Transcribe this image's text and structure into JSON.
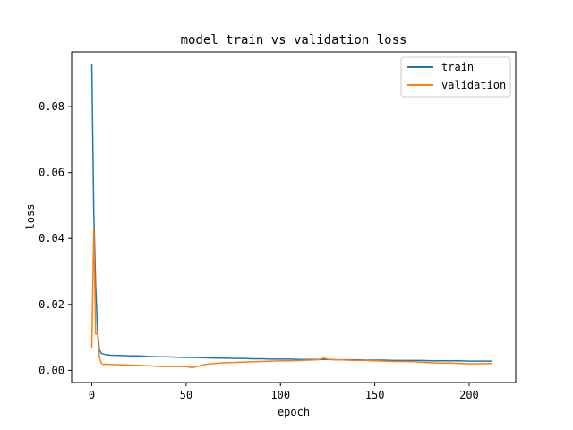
{
  "chart_data": {
    "type": "line",
    "title": "model train vs validation loss",
    "xlabel": "epoch",
    "ylabel": "loss",
    "xlim": [
      -10.7,
      224.7
    ],
    "ylim": [
      -0.0037,
      0.0966
    ],
    "xticks": [
      0,
      50,
      100,
      150,
      200
    ],
    "xtick_labels": [
      "0",
      "50",
      "100",
      "150",
      "200"
    ],
    "yticks": [
      0.0,
      0.02,
      0.04,
      0.06,
      0.08
    ],
    "ytick_labels": [
      "0.00",
      "0.02",
      "0.04",
      "0.06",
      "0.08"
    ],
    "grid": false,
    "legend_position": "top-right",
    "series": [
      {
        "name": "train",
        "color": "#1f77b4",
        "points": [
          [
            0,
            0.093
          ],
          [
            1,
            0.048
          ],
          [
            2,
            0.026
          ],
          [
            3,
            0.012
          ],
          [
            4,
            0.0062
          ],
          [
            5,
            0.0052
          ],
          [
            7,
            0.0048
          ],
          [
            10,
            0.0046
          ],
          [
            15,
            0.0045
          ],
          [
            20,
            0.0044
          ],
          [
            25,
            0.0044
          ],
          [
            30,
            0.0042
          ],
          [
            35,
            0.0041
          ],
          [
            40,
            0.0041
          ],
          [
            45,
            0.004
          ],
          [
            50,
            0.0039
          ],
          [
            55,
            0.0039
          ],
          [
            60,
            0.0038
          ],
          [
            65,
            0.0037
          ],
          [
            70,
            0.0037
          ],
          [
            75,
            0.0036
          ],
          [
            80,
            0.0036
          ],
          [
            85,
            0.0035
          ],
          [
            90,
            0.0035
          ],
          [
            95,
            0.0034
          ],
          [
            100,
            0.0034
          ],
          [
            105,
            0.0034
          ],
          [
            110,
            0.0033
          ],
          [
            115,
            0.0033
          ],
          [
            120,
            0.0033
          ],
          [
            125,
            0.0033
          ],
          [
            130,
            0.0032
          ],
          [
            135,
            0.0032
          ],
          [
            140,
            0.0032
          ],
          [
            145,
            0.0031
          ],
          [
            150,
            0.0031
          ],
          [
            155,
            0.0031
          ],
          [
            160,
            0.003
          ],
          [
            165,
            0.003
          ],
          [
            170,
            0.003
          ],
          [
            175,
            0.003
          ],
          [
            180,
            0.0029
          ],
          [
            185,
            0.0029
          ],
          [
            190,
            0.0029
          ],
          [
            195,
            0.0029
          ],
          [
            200,
            0.0028
          ],
          [
            205,
            0.0028
          ],
          [
            212,
            0.0028
          ]
        ]
      },
      {
        "name": "validation",
        "color": "#ff7f0e",
        "points": [
          [
            0,
            0.0068
          ],
          [
            1,
            0.043
          ],
          [
            2,
            0.011
          ],
          [
            3,
            0.011
          ],
          [
            4,
            0.004
          ],
          [
            5,
            0.0022
          ],
          [
            6,
            0.0018
          ],
          [
            8,
            0.0019
          ],
          [
            10,
            0.0018
          ],
          [
            15,
            0.0017
          ],
          [
            20,
            0.0016
          ],
          [
            25,
            0.0015
          ],
          [
            30,
            0.0014
          ],
          [
            35,
            0.0012
          ],
          [
            40,
            0.0011
          ],
          [
            45,
            0.0012
          ],
          [
            50,
            0.0011
          ],
          [
            53,
            0.0008
          ],
          [
            57,
            0.0013
          ],
          [
            60,
            0.0018
          ],
          [
            65,
            0.0021
          ],
          [
            70,
            0.0023
          ],
          [
            75,
            0.0024
          ],
          [
            80,
            0.0025
          ],
          [
            85,
            0.0026
          ],
          [
            90,
            0.0027
          ],
          [
            95,
            0.0028
          ],
          [
            100,
            0.0029
          ],
          [
            105,
            0.0029
          ],
          [
            110,
            0.003
          ],
          [
            115,
            0.0031
          ],
          [
            120,
            0.0032
          ],
          [
            123,
            0.0037
          ],
          [
            125,
            0.0034
          ],
          [
            130,
            0.0032
          ],
          [
            135,
            0.0031
          ],
          [
            140,
            0.003
          ],
          [
            145,
            0.003
          ],
          [
            150,
            0.0029
          ],
          [
            155,
            0.0028
          ],
          [
            160,
            0.0027
          ],
          [
            165,
            0.0027
          ],
          [
            170,
            0.0026
          ],
          [
            175,
            0.0025
          ],
          [
            180,
            0.0023
          ],
          [
            185,
            0.0022
          ],
          [
            190,
            0.0022
          ],
          [
            195,
            0.0021
          ],
          [
            200,
            0.002
          ],
          [
            205,
            0.002
          ],
          [
            212,
            0.0021
          ]
        ]
      }
    ]
  }
}
